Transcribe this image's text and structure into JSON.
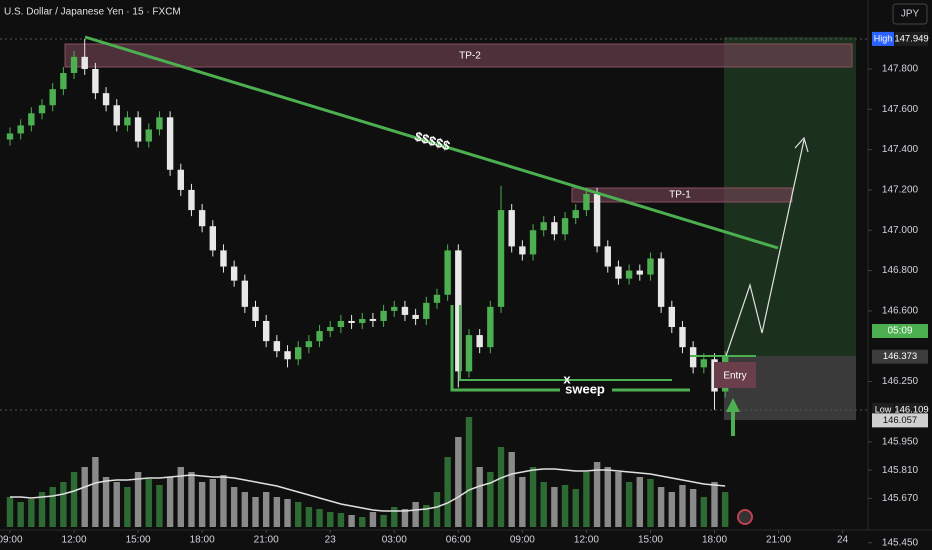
{
  "chart_data": {
    "type": "candlestick",
    "title": "U.S. Dollar / Japanese Yen · 15 · FXCM",
    "currency": "JPY",
    "countdown": "05:09",
    "x": [
      0,
      0.5,
      1,
      1.5,
      2,
      2.5,
      3,
      3.5,
      4,
      4.5,
      5,
      5.5,
      6,
      6.5,
      7,
      7.5,
      8,
      8.5,
      9,
      9.5,
      10,
      10.5,
      11,
      11.5,
      12,
      12.5,
      13,
      13.5,
      14,
      14.5,
      15,
      15.5,
      16,
      16.5,
      17,
      17.5,
      18,
      18.5,
      19,
      19.5,
      20,
      20.5,
      21,
      21.5,
      22,
      22.5,
      23,
      23.5,
      24,
      24.5,
      25,
      25.5,
      26,
      26.5,
      27,
      27.5,
      28,
      28.5,
      29,
      29.5,
      30,
      30.5,
      31,
      31.5,
      32,
      32.5,
      33,
      33.5
    ],
    "open": [
      147.45,
      147.48,
      147.52,
      147.58,
      147.62,
      147.7,
      147.78,
      147.86,
      147.8,
      147.68,
      147.62,
      147.52,
      147.56,
      147.44,
      147.5,
      147.56,
      147.3,
      147.2,
      147.1,
      147.02,
      146.9,
      146.82,
      146.75,
      146.62,
      146.55,
      146.45,
      146.4,
      146.36,
      146.42,
      146.45,
      146.5,
      146.52,
      146.55,
      146.54,
      146.56,
      146.55,
      146.6,
      146.62,
      146.58,
      146.56,
      146.64,
      146.68,
      146.9,
      146.3,
      146.48,
      146.42,
      146.62,
      147.1,
      146.92,
      146.88,
      147.0,
      147.04,
      146.98,
      147.06,
      147.1,
      147.18,
      146.92,
      146.82,
      146.76,
      146.8,
      146.78,
      146.86,
      146.62,
      146.52,
      146.42,
      146.32,
      146.36,
      146.2
    ],
    "high": [
      147.51,
      147.55,
      147.61,
      147.65,
      147.73,
      147.81,
      147.89,
      147.949,
      147.83,
      147.71,
      147.65,
      147.59,
      147.59,
      147.53,
      147.59,
      147.59,
      147.33,
      147.23,
      147.13,
      147.05,
      146.93,
      146.85,
      146.78,
      146.65,
      146.58,
      146.48,
      146.43,
      146.45,
      146.48,
      146.53,
      146.55,
      146.58,
      146.58,
      146.59,
      146.59,
      146.63,
      146.65,
      146.65,
      146.61,
      146.67,
      146.71,
      146.93,
      146.93,
      146.51,
      146.51,
      146.65,
      147.22,
      147.13,
      146.95,
      147.03,
      147.07,
      147.07,
      147.09,
      147.13,
      147.21,
      147.21,
      146.95,
      146.85,
      146.83,
      146.83,
      146.89,
      146.89,
      146.65,
      146.55,
      146.45,
      146.39,
      146.39,
      146.4
    ],
    "low": [
      147.42,
      147.45,
      147.49,
      147.55,
      147.59,
      147.67,
      147.75,
      147.77,
      147.65,
      147.59,
      147.49,
      147.49,
      147.41,
      147.41,
      147.47,
      147.27,
      147.17,
      147.07,
      146.99,
      146.87,
      146.79,
      146.72,
      146.59,
      146.52,
      146.42,
      146.37,
      146.32,
      146.33,
      146.39,
      146.42,
      146.47,
      146.49,
      146.51,
      146.51,
      146.52,
      146.52,
      146.57,
      146.55,
      146.53,
      146.53,
      146.61,
      146.65,
      146.22,
      146.27,
      146.39,
      146.39,
      146.59,
      146.89,
      146.85,
      146.85,
      146.97,
      146.95,
      146.95,
      147.03,
      147.07,
      146.89,
      146.79,
      146.73,
      146.73,
      146.75,
      146.75,
      146.59,
      146.49,
      146.39,
      146.29,
      146.29,
      146.109,
      146.17
    ],
    "close": [
      147.48,
      147.52,
      147.58,
      147.62,
      147.7,
      147.78,
      147.86,
      147.8,
      147.68,
      147.62,
      147.52,
      147.56,
      147.44,
      147.5,
      147.56,
      147.3,
      147.2,
      147.1,
      147.02,
      146.9,
      146.82,
      146.75,
      146.62,
      146.55,
      146.45,
      146.4,
      146.36,
      146.42,
      146.45,
      146.5,
      146.52,
      146.55,
      146.54,
      146.56,
      146.55,
      146.6,
      146.62,
      146.58,
      146.56,
      146.64,
      146.68,
      146.9,
      146.3,
      146.48,
      146.42,
      146.62,
      147.1,
      146.92,
      146.88,
      147.0,
      147.04,
      146.98,
      147.06,
      147.1,
      147.18,
      146.92,
      146.82,
      146.76,
      146.8,
      146.78,
      146.86,
      146.62,
      146.52,
      146.42,
      146.32,
      146.36,
      146.2,
      146.373
    ],
    "volume": [
      30,
      25,
      28,
      35,
      40,
      45,
      55,
      60,
      70,
      50,
      45,
      40,
      55,
      48,
      42,
      50,
      60,
      55,
      45,
      48,
      52,
      40,
      35,
      30,
      35,
      30,
      28,
      25,
      20,
      18,
      15,
      14,
      12,
      10,
      15,
      12,
      20,
      18,
      25,
      22,
      35,
      70,
      90,
      110,
      60,
      55,
      80,
      75,
      50,
      60,
      45,
      40,
      42,
      38,
      55,
      65,
      60,
      55,
      45,
      50,
      48,
      40,
      35,
      42,
      38,
      30,
      45,
      35
    ],
    "volume_ma": [
      30,
      30,
      29,
      30,
      31,
      33,
      36,
      40,
      44,
      46,
      47,
      47,
      48,
      49,
      49,
      50,
      51,
      52,
      51,
      50,
      50,
      49,
      47,
      45,
      43,
      41,
      38,
      35,
      32,
      29,
      26,
      23,
      21,
      19,
      17,
      16,
      16,
      16,
      17,
      18,
      20,
      24,
      30,
      37,
      41,
      44,
      49,
      53,
      55,
      57,
      58,
      58,
      57,
      56,
      56,
      57,
      57,
      56,
      55,
      54,
      53,
      51,
      49,
      47,
      45,
      43,
      42,
      41
    ],
    "up_color": "#4caf50",
    "down_color": "#e8e8e8",
    "volume_up_color": "#2e6b34",
    "volume_down_color": "#8a8a8a",
    "volume_ma_color": "#e0e0e0",
    "xlim": [
      -0.468,
      40.19
    ],
    "ylim": [
      145.414,
      148.142
    ],
    "volume_lim": [
      0,
      120
    ],
    "grid": false,
    "xticks": [
      {
        "value": 0,
        "label": "09:00"
      },
      {
        "value": 3,
        "label": "12:00"
      },
      {
        "value": 6,
        "label": "15:00"
      },
      {
        "value": 9,
        "label": "18:00"
      },
      {
        "value": 12,
        "label": "21:00"
      },
      {
        "value": 15,
        "label": "23"
      },
      {
        "value": 18,
        "label": "03:00"
      },
      {
        "value": 21,
        "label": "06:00"
      },
      {
        "value": 24,
        "label": "09:00"
      },
      {
        "value": 27,
        "label": "12:00"
      },
      {
        "value": 30,
        "label": "15:00"
      },
      {
        "value": 33,
        "label": "18:00"
      },
      {
        "value": 36,
        "label": "21:00"
      },
      {
        "value": 39,
        "label": "24"
      }
    ],
    "yticks": [
      {
        "value": 147.8,
        "label": "147.800"
      },
      {
        "value": 147.6,
        "label": "147.600"
      },
      {
        "value": 147.4,
        "label": "147.400"
      },
      {
        "value": 147.2,
        "label": "147.200"
      },
      {
        "value": 147.0,
        "label": "147.000"
      },
      {
        "value": 146.8,
        "label": "146.800"
      },
      {
        "value": 146.6,
        "label": "146.600"
      },
      {
        "value": 146.25,
        "label": "146.250"
      },
      {
        "value": 145.95,
        "label": "145.950"
      },
      {
        "value": 145.81,
        "label": "145.810"
      },
      {
        "value": 145.67,
        "label": "145.670"
      },
      {
        "value": 145.45,
        "label": "145.450"
      }
    ],
    "price_labels": [
      {
        "tag": "High",
        "value": 147.949,
        "color": "#2962ff"
      },
      {
        "value": 146.373,
        "color": "#3c3c3c"
      },
      {
        "tag": "Low",
        "value": 146.109,
        "color": "#1e1e1e"
      },
      {
        "value": 146.057,
        "color": "#cfcfcf"
      }
    ],
    "annotations": {
      "tp2": "TP-2",
      "tp1": "TP-1",
      "trend": "$$$$$",
      "x": "x",
      "sweep": "sweep",
      "entry": "Entry"
    }
  }
}
